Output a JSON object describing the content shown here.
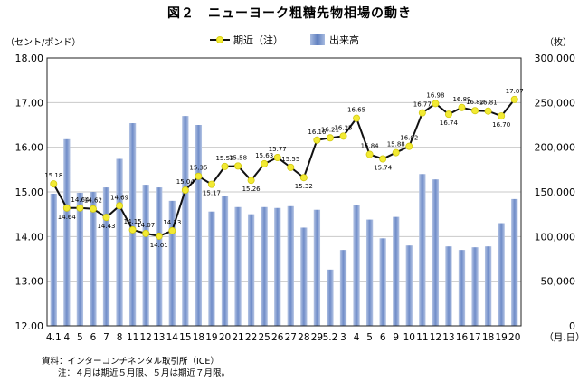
{
  "title": "図２　ニューヨーク粗糖先物相場の動き",
  "left_unit": "（セント/ポンド）",
  "right_unit": "（枚）",
  "x_unit": "（月.日）",
  "notes": {
    "source": "資料：インターコンチネンタル取引所（ICE）",
    "note": "注：４月は期近５月限、５月は期近７月限。"
  },
  "colors": {
    "bar": "#7f98cf",
    "line": "#111111",
    "marker": "#f2ea33"
  },
  "chart_data": {
    "type": "bar+line",
    "categories": [
      "4.1",
      "4",
      "5",
      "6",
      "7",
      "8",
      "11",
      "12",
      "13",
      "14",
      "15",
      "18",
      "19",
      "20",
      "21",
      "22",
      "25",
      "26",
      "27",
      "28",
      "29",
      "5.2",
      "3",
      "4",
      "5",
      "6",
      "9",
      "10",
      "11",
      "12",
      "13",
      "16",
      "17",
      "18",
      "19",
      "20"
    ],
    "y_left": {
      "ticks": [
        "12.00",
        "13.00",
        "14.00",
        "15.00",
        "16.00",
        "17.00",
        "18.00"
      ],
      "min": 12,
      "max": 18
    },
    "y_right": {
      "ticks": [
        "0",
        "50,000",
        "100,000",
        "150,000",
        "200,000",
        "250,000",
        "300,000"
      ],
      "min": 0,
      "max": 300000
    },
    "series": [
      {
        "name": "出来高",
        "kind": "bar",
        "axis": "right",
        "values": [
          148000,
          209000,
          149000,
          150000,
          155000,
          187000,
          227000,
          158000,
          155000,
          140000,
          235000,
          225000,
          128000,
          145000,
          133000,
          125000,
          133000,
          132000,
          134000,
          110000,
          130000,
          63000,
          85000,
          135000,
          119000,
          98000,
          122000,
          90000,
          170000,
          164000,
          89000,
          85000,
          88000,
          89000,
          115000,
          142000
        ]
      },
      {
        "name": "期近（注）",
        "kind": "line",
        "axis": "left",
        "values": [
          15.18,
          14.64,
          14.64,
          14.62,
          14.43,
          14.69,
          14.15,
          14.07,
          14.01,
          14.13,
          15.04,
          15.35,
          15.17,
          15.57,
          15.58,
          15.26,
          15.63,
          15.77,
          15.55,
          15.32,
          16.16,
          16.21,
          16.25,
          16.65,
          15.84,
          15.74,
          15.88,
          16.02,
          16.77,
          16.98,
          16.74,
          16.89,
          16.82,
          16.81,
          16.7,
          17.07
        ],
        "labels": [
          "15.18",
          "14.64",
          "14.64",
          "14.62",
          "14.43",
          "14.69",
          "14.15",
          "14.07",
          "14.01",
          "14.13",
          "15.04",
          "15.35",
          "15.17",
          "15.57",
          "15.58",
          "15.26",
          "15.63",
          "15.77",
          "15.55",
          "15.32",
          "16.16",
          "16.21",
          "16.25",
          "16.65",
          "15.84",
          "15.74",
          "15.88",
          "16.02",
          "16.77",
          "16.98",
          "16.74",
          "16.89",
          "16.82",
          "16.81",
          "16.70",
          "17.07"
        ]
      }
    ],
    "grid": true
  }
}
